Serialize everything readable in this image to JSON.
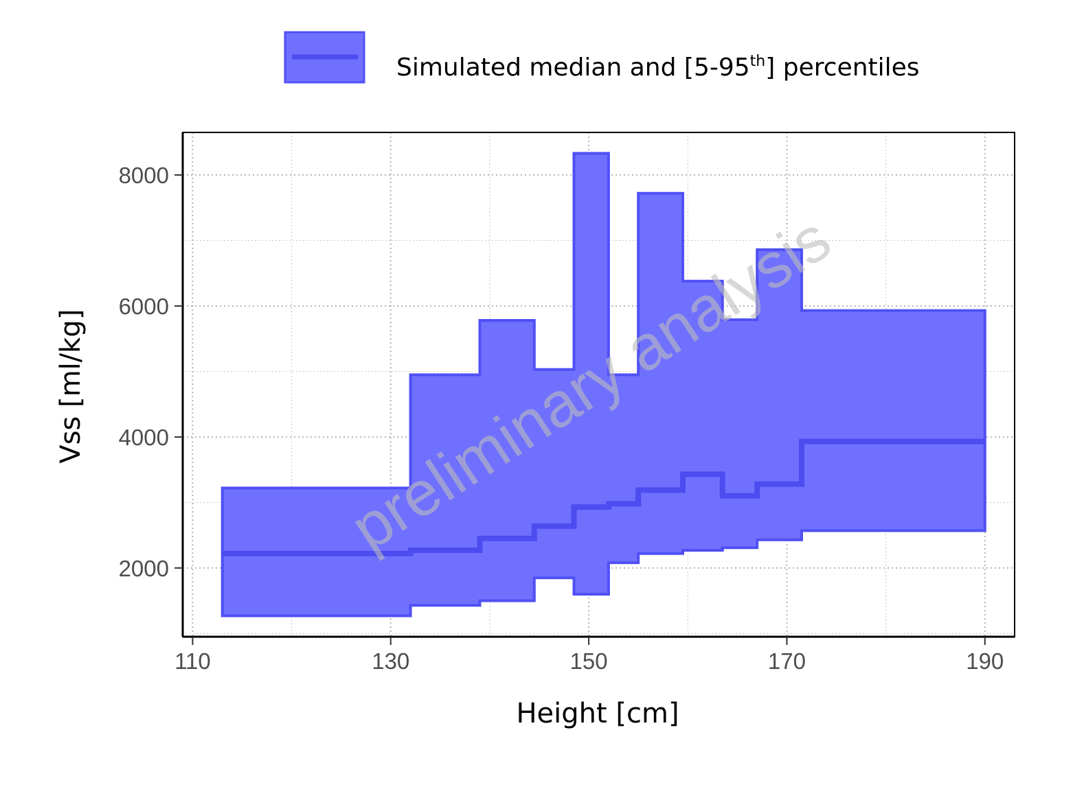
{
  "chart_data": {
    "type": "area",
    "xlabel": "Height [cm]",
    "ylabel": "Vss [ml/kg]",
    "xlim": [
      109,
      193
    ],
    "ylim": [
      950,
      8650
    ],
    "x_ticks": [
      110,
      130,
      150,
      170,
      190
    ],
    "x_tick_labels": [
      "110",
      "130",
      "150",
      "170",
      "190"
    ],
    "y_ticks": [
      2000,
      4000,
      6000,
      8000
    ],
    "y_tick_labels": [
      "2000",
      "4000",
      "6000",
      "8000"
    ],
    "grid": true,
    "legend_position": "top",
    "legend": {
      "label_main": "Simulated median and [5-95",
      "label_sup": "th",
      "label_end": "] percentiles"
    },
    "watermark": "preliminary analysis",
    "colors": {
      "band_fill": "#7070ff",
      "band_stroke": "#5050f5",
      "median": "#4c4cf0",
      "grid": "#c8c8c8",
      "axis": "#000000"
    },
    "step_edges": [
      113.0,
      132.0,
      139.0,
      144.5,
      148.5,
      152.0,
      155.0,
      159.5,
      163.5,
      167.0,
      171.5,
      190.0
    ],
    "series": [
      {
        "name": "Simulated median",
        "role": "median",
        "values": [
          2220,
          2270,
          2450,
          2640,
          2930,
          2980,
          3190,
          3430,
          3100,
          3280,
          3930
        ]
      },
      {
        "name": "5th percentile",
        "role": "lower",
        "values": [
          1270,
          1430,
          1500,
          1850,
          1600,
          2080,
          2220,
          2270,
          2310,
          2430,
          2570
        ]
      },
      {
        "name": "95th percentile",
        "role": "upper",
        "values": [
          3220,
          4950,
          5780,
          5030,
          8330,
          4950,
          7720,
          6380,
          5790,
          6860,
          5930
        ]
      }
    ]
  }
}
